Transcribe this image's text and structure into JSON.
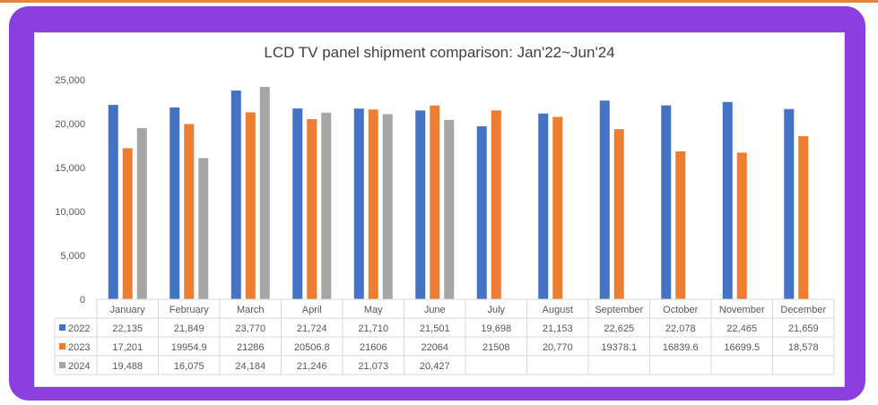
{
  "colors": {
    "frame": "#8b3fe0",
    "series": [
      "#4472c4",
      "#ed7d31",
      "#a5a5a5"
    ]
  },
  "chart_data": {
    "type": "bar",
    "title": "LCD TV panel shipment comparison: Jan'22~Jun'24",
    "xlabel": "",
    "ylabel": "",
    "ylim": [
      0,
      25000
    ],
    "yticks": [
      "0",
      "5,000",
      "10,000",
      "15,000",
      "20,000",
      "25,000"
    ],
    "grid": false,
    "legend": "data-table",
    "categories": [
      "January",
      "February",
      "March",
      "April",
      "May",
      "June",
      "July",
      "August",
      "September",
      "October",
      "November",
      "December"
    ],
    "series": [
      {
        "name": "2022",
        "values": [
          22135,
          21849,
          23770,
          21724,
          21710,
          21501,
          19698,
          21153,
          22625,
          22078,
          22465,
          21659
        ],
        "labels": [
          "22,135",
          "21,849",
          "23,770",
          "21,724",
          "21,710",
          "21,501",
          "19,698",
          "21,153",
          "22,625",
          "22,078",
          "22,465",
          "21,659"
        ]
      },
      {
        "name": "2023",
        "values": [
          17201,
          19954.9,
          21286,
          20506.8,
          21606,
          22064,
          21508,
          20770,
          19378.1,
          16839.6,
          16699.5,
          18578
        ],
        "labels": [
          "17,201",
          "19954.9",
          "21286",
          "20506.8",
          "21606",
          "22064",
          "21508",
          "20,770",
          "19378.1",
          "16839.6",
          "16699.5",
          "18,578"
        ]
      },
      {
        "name": "2024",
        "values": [
          19488,
          16075,
          24184,
          21246,
          21073,
          20427,
          null,
          null,
          null,
          null,
          null,
          null
        ],
        "labels": [
          "19,488",
          "16,075",
          "24,184",
          "21,246",
          "21,073",
          "20,427",
          "",
          "",
          "",
          "",
          "",
          ""
        ]
      }
    ]
  }
}
